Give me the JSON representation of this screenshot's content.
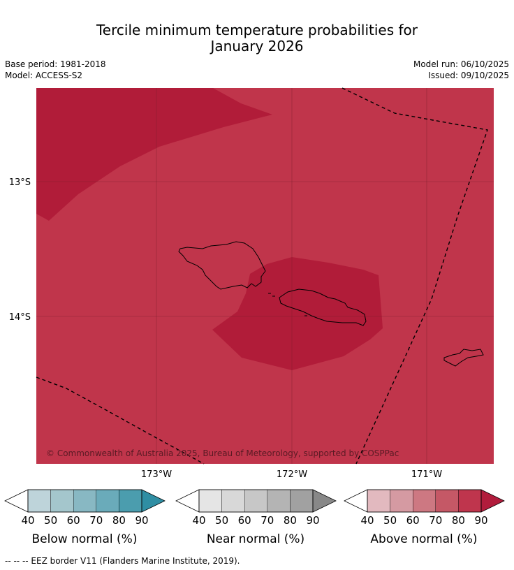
{
  "title": {
    "line1": "Tercile minimum temperature probabilities for",
    "line2": "January 2026"
  },
  "meta": {
    "base_period": "Base period: 1981-2018",
    "model": "Model: ACCESS-S2",
    "model_run": "Model run: 06/10/2025",
    "issued": "Issued: 09/10/2025"
  },
  "map": {
    "copyright": "© Commonwealth of Australia 2025, Bureau of Meteorology, supported by COSPPac",
    "lat_labels": [
      "13°S",
      "14°S"
    ],
    "lon_labels": [
      "173°W",
      "172°W",
      "171°W"
    ],
    "colors": {
      "background": "#c0354b",
      "high_zone": "#b11c39",
      "coast": "#000000",
      "eez": "#000000",
      "grid": "#7a1f2d"
    }
  },
  "colorbars": [
    {
      "name": "below",
      "label": "Below normal (%)",
      "ticks": [
        "40",
        "50",
        "60",
        "70",
        "80",
        "90"
      ],
      "colors": [
        "#ffffff",
        "#bed4da",
        "#a4c6cc",
        "#88b8c3",
        "#6aabba",
        "#4b9dae",
        "#2f8ea3"
      ]
    },
    {
      "name": "near",
      "label": "Near normal (%)",
      "ticks": [
        "40",
        "50",
        "60",
        "70",
        "80",
        "90"
      ],
      "colors": [
        "#ffffff",
        "#e5e5e5",
        "#d8d8d8",
        "#c7c7c7",
        "#b4b4b4",
        "#a1a1a1",
        "#888888"
      ]
    },
    {
      "name": "above",
      "label": "Above normal (%)",
      "ticks": [
        "40",
        "50",
        "60",
        "70",
        "80",
        "90"
      ],
      "colors": [
        "#ffffff",
        "#e2b9bf",
        "#d59aa2",
        "#cd7882",
        "#c55866",
        "#bf354d",
        "#b11c3c"
      ]
    }
  ],
  "footnote": "--  --  -- EEZ border V11 (Flanders Marine Institute, 2019)."
}
